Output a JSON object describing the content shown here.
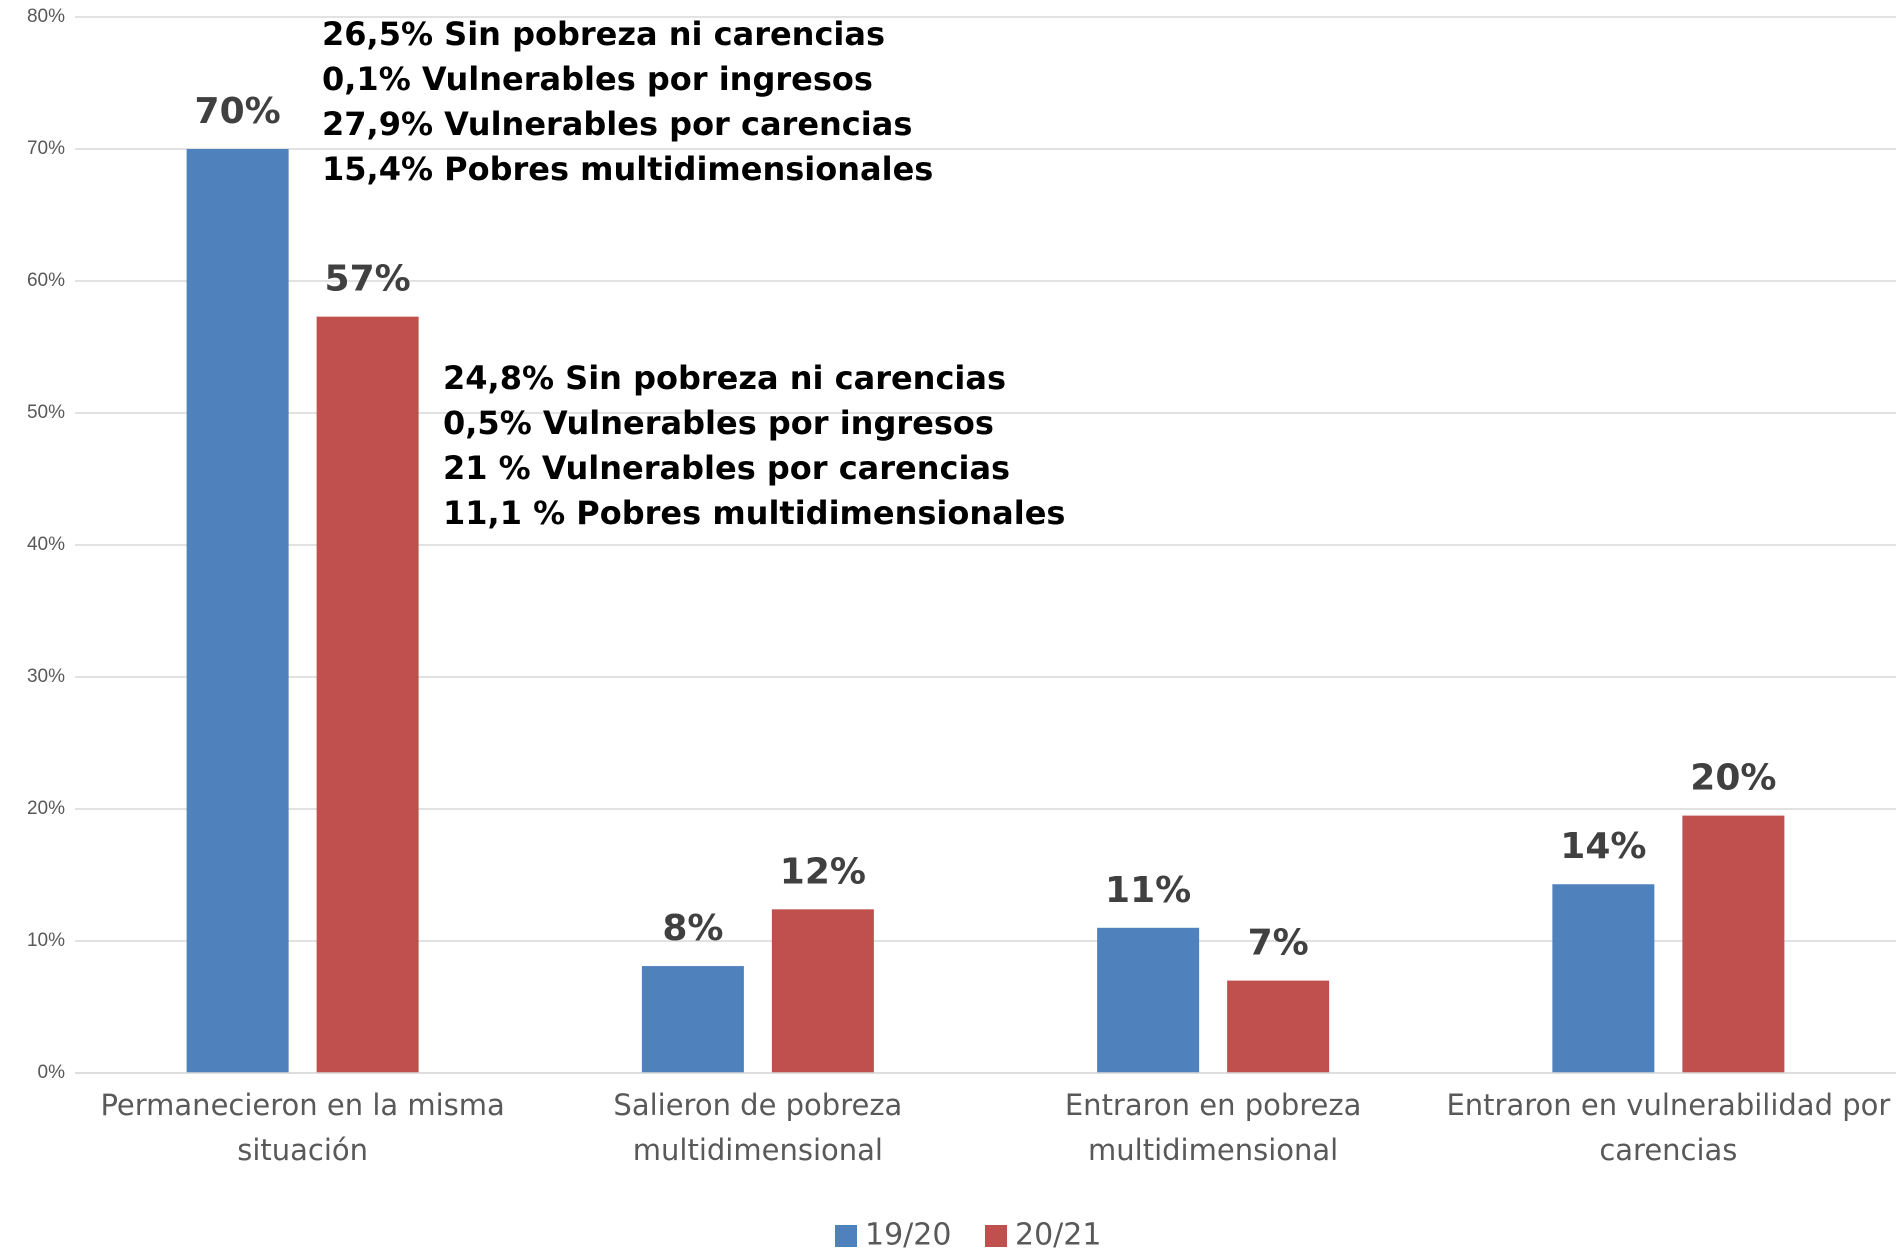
{
  "chart_data": {
    "type": "bar",
    "categories": [
      "Permanecieron en la misma situación",
      "Salieron de pobreza multidimensional",
      "Entraron en pobreza multidimensional",
      "Entraron en vulnerabilidad por carencias"
    ],
    "series": [
      {
        "name": "19/20",
        "color": "#4f81bd",
        "values": [
          70,
          8.1,
          11,
          14.3
        ],
        "value_labels": [
          "70%",
          "8%",
          "11%",
          "14%"
        ]
      },
      {
        "name": "20/21",
        "color": "#c0504d",
        "values": [
          57.3,
          12.4,
          7,
          19.5
        ],
        "value_labels": [
          "57%",
          "12%",
          "7%",
          "20%"
        ]
      }
    ],
    "ylim": [
      0,
      80
    ],
    "yticks": [
      {
        "value": 0,
        "label": "0%"
      },
      {
        "value": 10,
        "label": "10%"
      },
      {
        "value": 20,
        "label": "20%"
      },
      {
        "value": 30,
        "label": "30%"
      },
      {
        "value": 40,
        "label": "40%"
      },
      {
        "value": 50,
        "label": "50%"
      },
      {
        "value": 60,
        "label": "60%"
      },
      {
        "value": 70,
        "label": "70%"
      },
      {
        "value": 80,
        "label": "80%"
      }
    ],
    "grid": true,
    "legend": "bottom",
    "annotations": [
      [
        "26,5% Sin pobreza ni carencias",
        "0,1% Vulnerables por ingresos",
        "27,9% Vulnerables por carencias",
        "15,4% Pobres multidimensionales"
      ],
      [
        "24,8% Sin pobreza ni carencias",
        "0,5% Vulnerables por ingresos",
        "21 % Vulnerables por carencias",
        "11,1 % Pobres multidimensionales"
      ]
    ]
  }
}
